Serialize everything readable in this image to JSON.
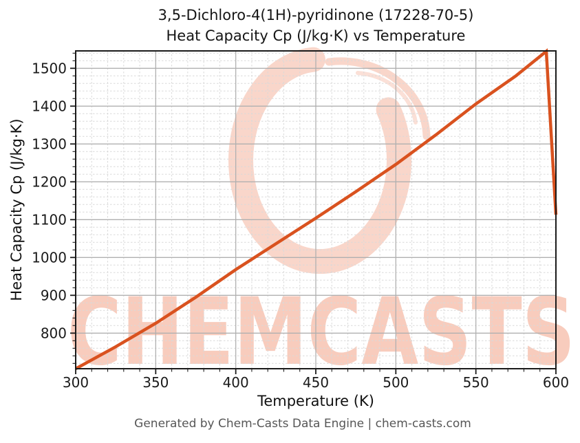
{
  "title": {
    "line1": "3,5-Dichloro-4(1H)-pyridinone (17228-70-5)",
    "line2": "Heat Capacity Cp (J/kg·K) vs Temperature"
  },
  "footer": "Generated by Chem-Casts Data Engine | chem-casts.com",
  "watermark": {
    "text": "CHEMCASTS",
    "logo": "brush-circle-logo",
    "logo_color": "#f9d6ca",
    "text_color": "#f8ccbd"
  },
  "colors": {
    "line": "#d9521f",
    "spine": "#1a1a1a",
    "grid_major": "#b0b0b0",
    "grid_minor": "#d9d9d9",
    "tick": "#1a1a1a",
    "footer_text": "#565656"
  },
  "chart_data": {
    "type": "line",
    "title": "3,5-Dichloro-4(1H)-pyridinone (17228-70-5) — Heat Capacity Cp (J/kg·K) vs Temperature",
    "xlabel": "Temperature (K)",
    "ylabel": "Heat Capacity Cp (J/kg·K)",
    "xlim": [
      300,
      600
    ],
    "ylim": [
      706,
      1546
    ],
    "x_ticks": [
      300,
      350,
      400,
      450,
      500,
      550,
      600
    ],
    "y_ticks": [
      800,
      900,
      1000,
      1100,
      1200,
      1300,
      1400,
      1500
    ],
    "x_minor_step": 10,
    "y_minor_step": 20,
    "grid": true,
    "legend": "none",
    "series": [
      {
        "name": "Heat Capacity Cp",
        "x": [
          300,
          325,
          350,
          375,
          400,
          425,
          450,
          475,
          500,
          525,
          550,
          575,
          594,
          600
        ],
        "y": [
          706,
          764,
          826,
          895,
          968,
          1036,
          1104,
          1174,
          1246,
          1324,
          1406,
          1480,
          1545,
          1113
        ],
        "peak": {
          "x": 594,
          "y": 1545
        },
        "color": "#d9521f",
        "line_width": 4.5
      }
    ]
  }
}
